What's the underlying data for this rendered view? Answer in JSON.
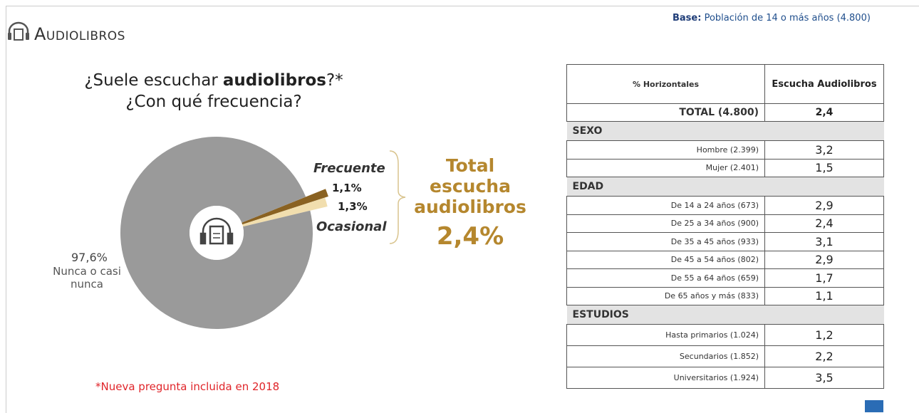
{
  "header": {
    "title": "Audiolibros",
    "base_label": "Base:",
    "base_text": "Población de 14 o más años (4.800)"
  },
  "chart_data": {
    "type": "donut",
    "title": [
      "¿Suele escuchar",
      "audiolibros",
      "?*"
    ],
    "subtitle": "¿Con qué frecuencia?",
    "categories": [
      "Frecuente",
      "Ocasional",
      "Nunca o casi nunca"
    ],
    "values": [
      1.1,
      1.3,
      97.6
    ],
    "value_labels": [
      "1,1%",
      "1,3%",
      "97,6%"
    ],
    "colors": [
      "#8a6222",
      "#f1deae",
      "#9a9a9a"
    ],
    "total_label": "Total escucha audiolibros",
    "total_value": "2,4%",
    "footnote": "*Nueva pregunta incluida en 2018"
  },
  "table": {
    "columns": [
      "% Horizontales",
      "Escucha Audiolibros"
    ],
    "total": {
      "label": "TOTAL (4.800)",
      "value": "2,4"
    },
    "sections": [
      {
        "name": "SEXO",
        "rows": [
          {
            "label": "Hombre (2.399)",
            "value": "3,2"
          },
          {
            "label": "Mujer (2.401)",
            "value": "1,5"
          }
        ]
      },
      {
        "name": "EDAD",
        "rows": [
          {
            "label": "De 14 a 24 años (673)",
            "value": "2,9"
          },
          {
            "label": "De 25 a 34 años (900)",
            "value": "2,4"
          },
          {
            "label": "De 35 a 45 años (933)",
            "value": "3,1"
          },
          {
            "label": "De 45 a 54 años (802)",
            "value": "2,9"
          },
          {
            "label": "De 55 a 64 años (659)",
            "value": "1,7"
          },
          {
            "label": "De 65 años y más (833)",
            "value": "1,1"
          }
        ]
      },
      {
        "name": "ESTUDIOS",
        "rows": [
          {
            "label": "Hasta primarios (1.024)",
            "value": "1,2"
          },
          {
            "label": "Secundarios (1.852)",
            "value": "2,2"
          },
          {
            "label": "Universitarios (1.924)",
            "value": "3,5"
          }
        ]
      }
    ]
  }
}
